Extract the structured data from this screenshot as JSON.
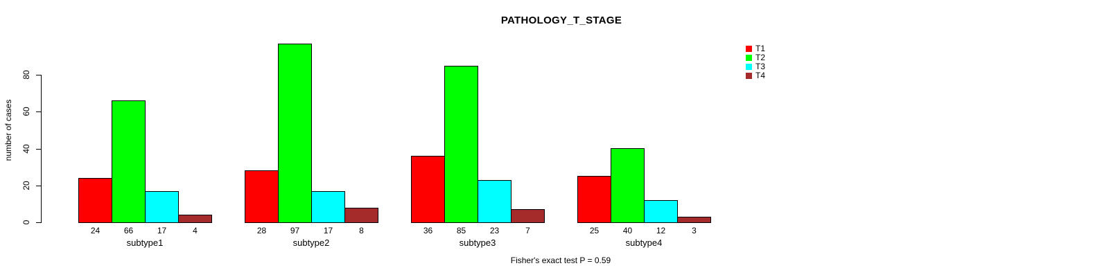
{
  "title": "PATHOLOGY_T_STAGE",
  "chart_data": {
    "type": "bar",
    "title": "PATHOLOGY_T_STAGE",
    "xlabel": "",
    "ylabel": "number of cases",
    "categories": [
      "subtype1",
      "subtype2",
      "subtype3",
      "subtype4"
    ],
    "series": [
      {
        "name": "T1",
        "color": "#ff0000",
        "values": [
          24,
          28,
          36,
          25
        ]
      },
      {
        "name": "T2",
        "color": "#00ff00",
        "values": [
          66,
          97,
          85,
          40
        ]
      },
      {
        "name": "T3",
        "color": "#00ffff",
        "values": [
          17,
          17,
          23,
          12
        ]
      },
      {
        "name": "T4",
        "color": "#a52a2a",
        "values": [
          4,
          8,
          7,
          3
        ]
      }
    ],
    "yticks": [
      0,
      20,
      40,
      60,
      80
    ],
    "ylim": [
      0,
      97
    ],
    "grid": false,
    "bar_value_labels": true,
    "legend_position": "top-right",
    "annotation": "Fisher's exact test P = 0.59"
  }
}
